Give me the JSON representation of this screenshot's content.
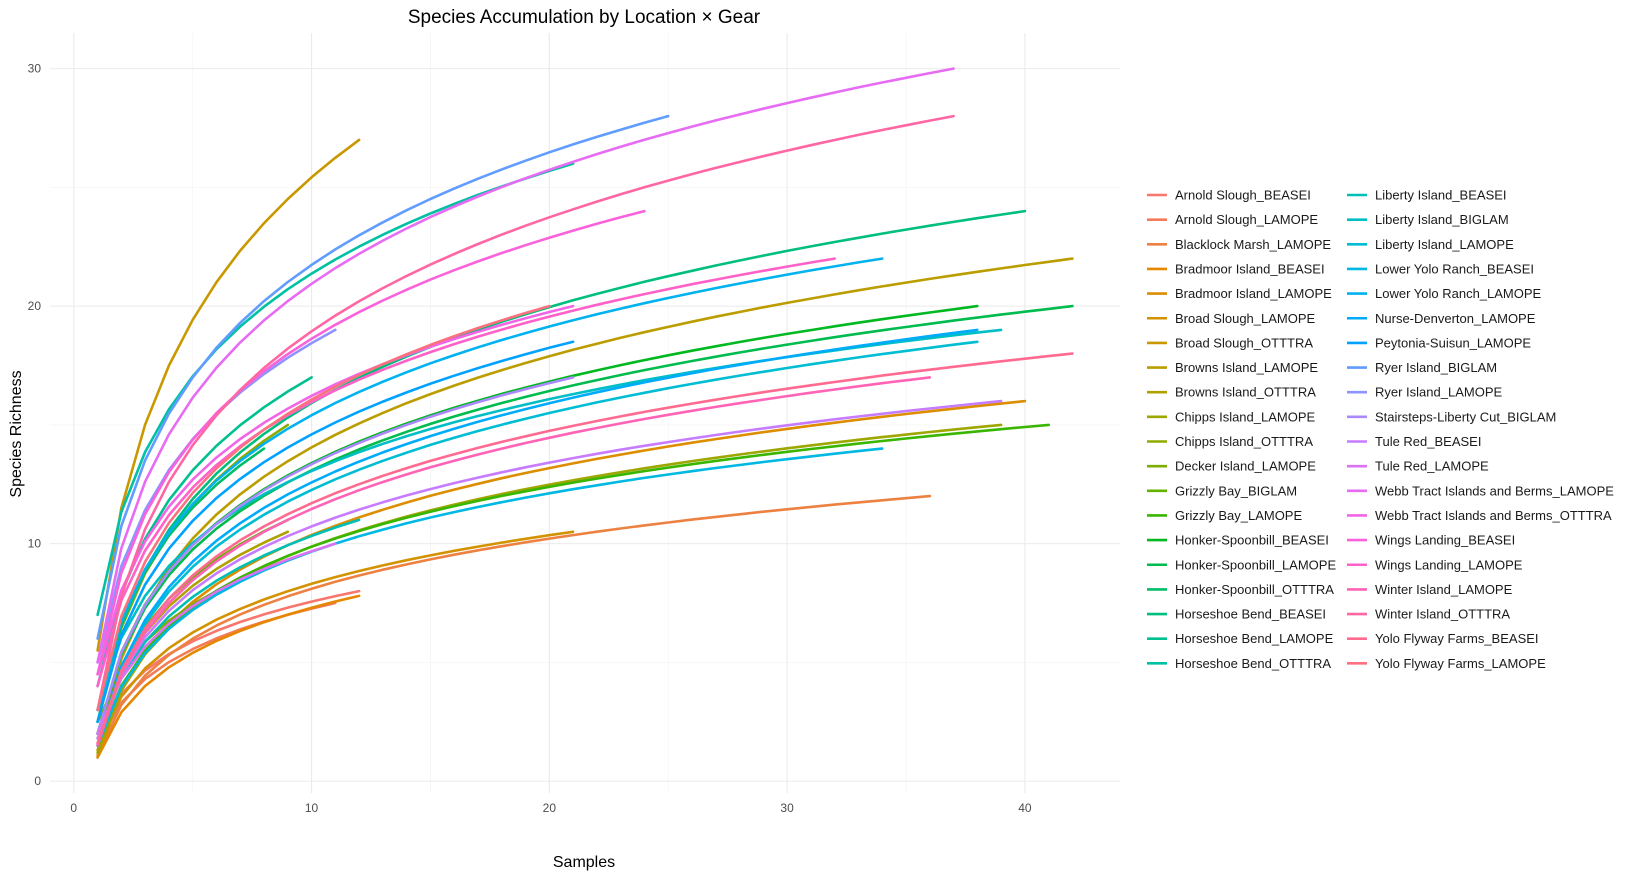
{
  "chart_data": {
    "type": "line",
    "title": "Species Accumulation by Location × Gear",
    "xlabel": "Samples",
    "ylabel": "Species Richness",
    "xlim": [
      -1,
      44
    ],
    "ylim": [
      -0.5,
      31.5
    ],
    "xticks": [
      0,
      10,
      20,
      30,
      40
    ],
    "yticks": [
      0,
      10,
      20,
      30
    ],
    "grid": true,
    "legend_position": "right",
    "series": [
      {
        "name": "Arnold Slough_BEASEI",
        "color": "#F8766D",
        "n": 12,
        "y1": 2.0,
        "final": 8
      },
      {
        "name": "Arnold Slough_LAMOPE",
        "color": "#F37B59",
        "n": 11,
        "y1": 1.6,
        "final": 7.5
      },
      {
        "name": "Blacklock Marsh_LAMOPE",
        "color": "#ED8141",
        "n": 36,
        "y1": 1.1,
        "final": 12
      },
      {
        "name": "Bradmoor Island_BEASEI",
        "color": "#E58700",
        "n": 12,
        "y1": 1.0,
        "final": 7.8
      },
      {
        "name": "Bradmoor Island_LAMOPE",
        "color": "#DC8D00",
        "n": 40,
        "y1": 1.0,
        "final": 16
      },
      {
        "name": "Broad Slough_LAMOPE",
        "color": "#D39200",
        "n": 21,
        "y1": 1.5,
        "final": 10.5
      },
      {
        "name": "Broad Slough_OTTTRA",
        "color": "#C99800",
        "n": 12,
        "y1": 5.5,
        "final": 27
      },
      {
        "name": "Browns Island_LAMOPE",
        "color": "#BB9D00",
        "n": 42,
        "y1": 1.3,
        "final": 22
      },
      {
        "name": "Browns Island_OTTTRA",
        "color": "#ADA200",
        "n": 9,
        "y1": 2.0,
        "final": 10.5
      },
      {
        "name": "Chipps Island_LAMOPE",
        "color": "#9EA700",
        "n": 39,
        "y1": 1.2,
        "final": 15
      },
      {
        "name": "Chipps Island_OTTTRA",
        "color": "#8EAB00",
        "n": 9,
        "y1": 2.5,
        "final": 15
      },
      {
        "name": "Decker Island_LAMOPE",
        "color": "#7CAE00",
        "n": 6,
        "y1": 2.5,
        "final": 8
      },
      {
        "name": "Grizzly Bay_BIGLAM",
        "color": "#64B200",
        "n": 9,
        "y1": 2.0,
        "final": 11
      },
      {
        "name": "Grizzly Bay_LAMOPE",
        "color": "#39B600",
        "n": 41,
        "y1": 1.5,
        "final": 15
      },
      {
        "name": "Honker-Spoonbill_BEASEI",
        "color": "#00B81F",
        "n": 38,
        "y1": 2.0,
        "final": 20
      },
      {
        "name": "Honker-Spoonbill_LAMOPE",
        "color": "#00BB4E",
        "n": 42,
        "y1": 2.0,
        "final": 20
      },
      {
        "name": "Honker-Spoonbill_OTTTRA",
        "color": "#00BE67",
        "n": 8,
        "y1": 3.0,
        "final": 14
      },
      {
        "name": "Horseshoe Bend_BEASEI",
        "color": "#00BF7D",
        "n": 40,
        "y1": 2.5,
        "final": 24
      },
      {
        "name": "Horseshoe Bend_LAMOPE",
        "color": "#00C090",
        "n": 10,
        "y1": 4.0,
        "final": 17
      },
      {
        "name": "Horseshoe Bend_OTTTRA",
        "color": "#00C1A3",
        "n": 21,
        "y1": 7.0,
        "final": 26
      },
      {
        "name": "Liberty Island_BEASEI",
        "color": "#00C0B5",
        "n": 12,
        "y1": 1.8,
        "final": 11
      },
      {
        "name": "Liberty Island_BIGLAM",
        "color": "#00BFC4",
        "n": 39,
        "y1": 3.0,
        "final": 19
      },
      {
        "name": "Liberty Island_LAMOPE",
        "color": "#00BDD3",
        "n": 38,
        "y1": 1.5,
        "final": 18.5
      },
      {
        "name": "Lower Yolo Ranch_BEASEI",
        "color": "#00B8E2",
        "n": 34,
        "y1": 1.5,
        "final": 14
      },
      {
        "name": "Lower Yolo Ranch_LAMOPE",
        "color": "#00B2EF",
        "n": 34,
        "y1": 3.0,
        "final": 22
      },
      {
        "name": "Nurse-Denverton_LAMOPE",
        "color": "#00ABFA",
        "n": 38,
        "y1": 1.5,
        "final": 19
      },
      {
        "name": "Peytonia-Suisun_LAMOPE",
        "color": "#00A2FF",
        "n": 21,
        "y1": 2.5,
        "final": 18.5
      },
      {
        "name": "Ryer Island_BIGLAM",
        "color": "#619CFF",
        "n": 25,
        "y1": 6.0,
        "final": 28
      },
      {
        "name": "Ryer Island_LAMOPE",
        "color": "#8D93FF",
        "n": 11,
        "y1": 5.0,
        "final": 19
      },
      {
        "name": "Stairsteps-Liberty Cut_BIGLAM",
        "color": "#AC88FF",
        "n": 21,
        "y1": 2.0,
        "final": 17
      },
      {
        "name": "Tule Red_BEASEI",
        "color": "#C77CFF",
        "n": 39,
        "y1": 1.8,
        "final": 16
      },
      {
        "name": "Tule Red_LAMOPE",
        "color": "#DA72F4",
        "n": 11,
        "y1": 2.0,
        "final": 10
      },
      {
        "name": "Webb Tract Islands and Berms_LAMOPE",
        "color": "#E76BF3",
        "n": 37,
        "y1": 5.0,
        "final": 30
      },
      {
        "name": "Webb Tract Islands and Berms_OTTTRA",
        "color": "#F265E7",
        "n": 21,
        "y1": 4.5,
        "final": 20
      },
      {
        "name": "Wings Landing_BEASEI",
        "color": "#FA62DB",
        "n": 24,
        "y1": 4.5,
        "final": 24
      },
      {
        "name": "Wings Landing_LAMOPE",
        "color": "#FF61C9",
        "n": 32,
        "y1": 4.0,
        "final": 22
      },
      {
        "name": "Winter Island_LAMOPE",
        "color": "#FF63B6",
        "n": 36,
        "y1": 1.5,
        "final": 17
      },
      {
        "name": "Winter Island_OTTTRA",
        "color": "#FF66A4",
        "n": 37,
        "y1": 3.0,
        "final": 28
      },
      {
        "name": "Yolo Flyway Farms_BEASEI",
        "color": "#FF6A90",
        "n": 42,
        "y1": 1.6,
        "final": 18
      },
      {
        "name": "Yolo Flyway Farms_LAMOPE",
        "color": "#FC717F",
        "n": 20,
        "y1": 3.0,
        "final": 20
      }
    ]
  }
}
